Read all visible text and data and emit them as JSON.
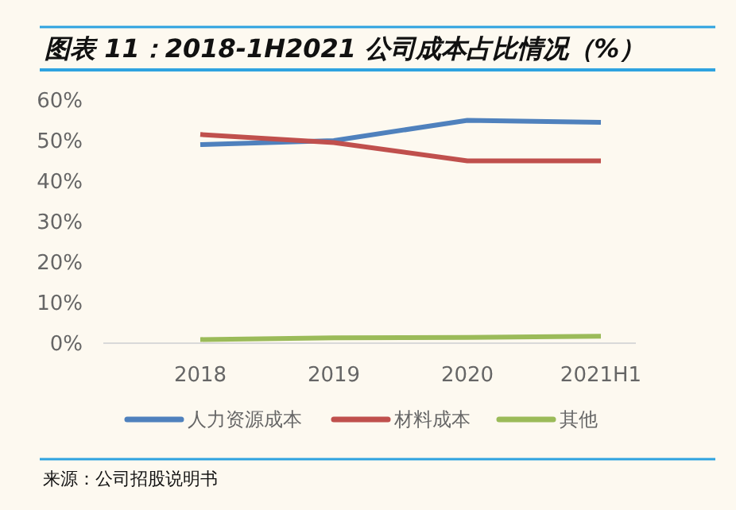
{
  "chart_data": {
    "type": "line",
    "title": "图表 11：2018-1H2021 公司成本占比情况（%）",
    "categories": [
      "2018",
      "2019",
      "2020",
      "2021H1"
    ],
    "series": [
      {
        "name": "人力资源成本",
        "color": "#4f81bd",
        "values": [
          49,
          50,
          55,
          54.5
        ]
      },
      {
        "name": "材料成本",
        "color": "#c0504d",
        "values": [
          51.5,
          49.5,
          45,
          45
        ]
      },
      {
        "name": "其他",
        "color": "#9bbb59",
        "values": [
          0.9,
          1.3,
          1.4,
          1.7
        ]
      }
    ],
    "ylim": [
      0,
      60
    ],
    "yticks": [
      {
        "value": 0,
        "label": "0%"
      },
      {
        "value": 10,
        "label": "10%"
      },
      {
        "value": 20,
        "label": "20%"
      },
      {
        "value": 30,
        "label": "30%"
      },
      {
        "value": 40,
        "label": "40%"
      },
      {
        "value": 50,
        "label": "50%"
      },
      {
        "value": 60,
        "label": "60%"
      }
    ],
    "grid": false,
    "legend": "bottom",
    "marker": "none",
    "line_style": "solid",
    "annotations": [
      "来源：公司招股说明书"
    ]
  }
}
